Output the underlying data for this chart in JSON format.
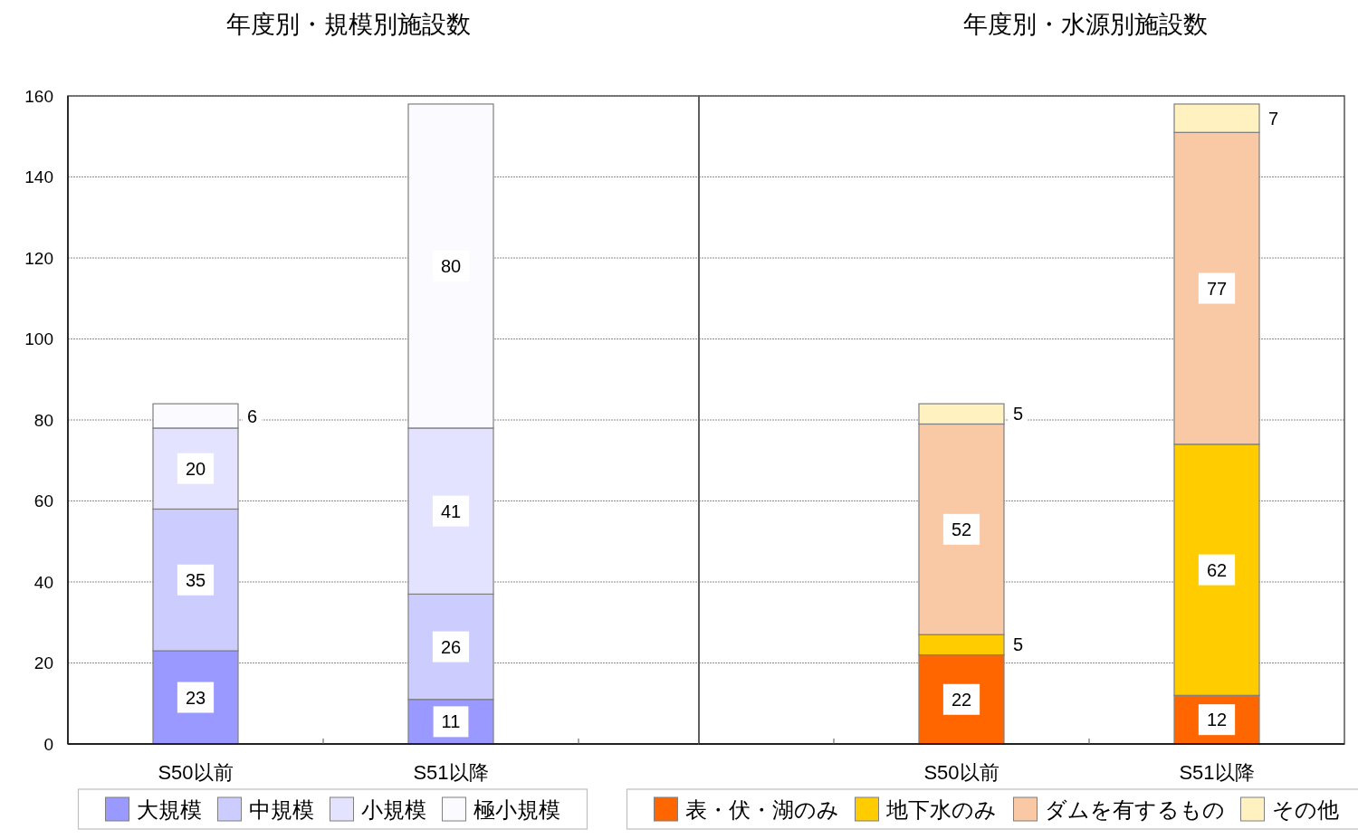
{
  "chart_data": [
    {
      "type": "bar",
      "title": "年度別・規模別施設数",
      "categories": [
        "S50以前",
        "S51以降"
      ],
      "stacked": true,
      "series": [
        {
          "name": "大規模",
          "color": "#9999ff",
          "values": [
            23,
            11
          ]
        },
        {
          "name": "中規模",
          "color": "#ccccff",
          "values": [
            35,
            26
          ]
        },
        {
          "name": "小規模",
          "color": "#e3e3ff",
          "values": [
            20,
            41
          ]
        },
        {
          "name": "極小規模",
          "color": "#fafaff",
          "values": [
            6,
            80
          ]
        }
      ],
      "ylim": [
        0,
        160
      ],
      "yticks": [
        0,
        20,
        40,
        60,
        80,
        100,
        120,
        140,
        160
      ],
      "grid": "y",
      "legend": "bottom",
      "data_labels": true
    },
    {
      "type": "bar",
      "title": "年度別・水源別施設数",
      "categories": [
        "S50以前",
        "S51以降"
      ],
      "stacked": true,
      "series": [
        {
          "name": "表・伏・湖のみ",
          "color": "#ff6600",
          "values": [
            22,
            12
          ]
        },
        {
          "name": "地下水のみ",
          "color": "#ffcc00",
          "values": [
            5,
            62
          ]
        },
        {
          "name": "ダムを有するもの",
          "color": "#f9c8a4",
          "values": [
            52,
            77
          ]
        },
        {
          "name": "その他",
          "color": "#fff2c0",
          "values": [
            5,
            7
          ]
        }
      ],
      "ylim": [
        0,
        160
      ],
      "yticks": [
        0,
        20,
        40,
        60,
        80,
        100,
        120,
        140,
        160
      ],
      "grid": "y",
      "legend": "bottom",
      "data_labels": true,
      "tick_labels": "x"
    }
  ]
}
